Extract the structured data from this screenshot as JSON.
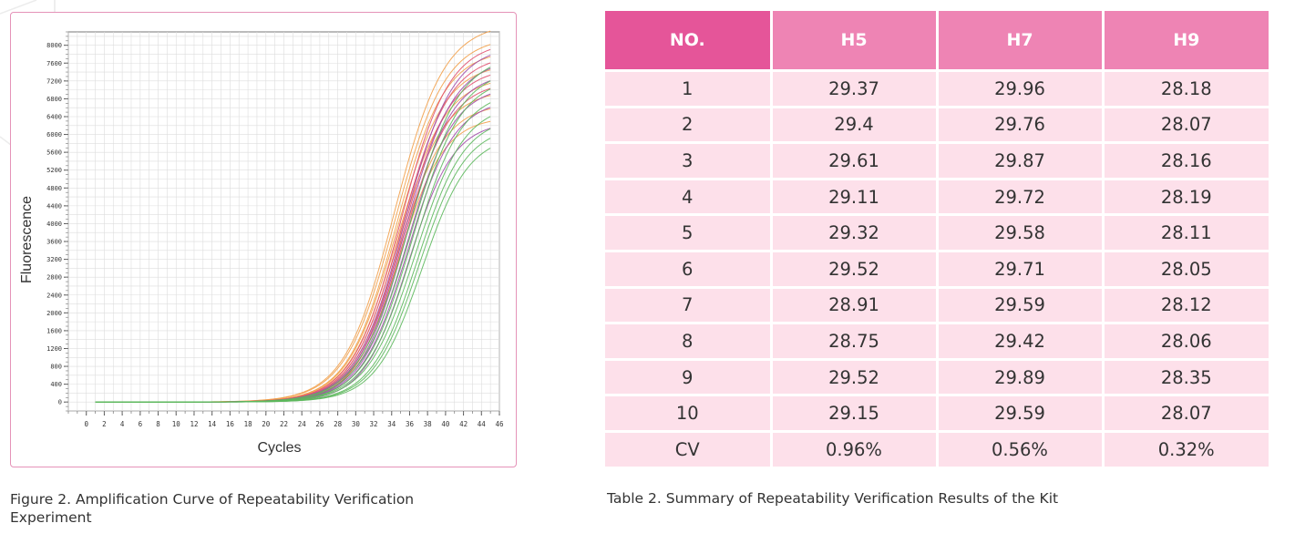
{
  "chart_data": {
    "type": "line",
    "title": "",
    "xlabel": "Cycles",
    "ylabel": "Fluorescence",
    "xlim": [
      -2,
      46
    ],
    "ylim": [
      -200,
      8300
    ],
    "x_ticks": [
      0,
      2,
      4,
      6,
      8,
      10,
      12,
      14,
      16,
      18,
      20,
      22,
      24,
      26,
      28,
      30,
      32,
      34,
      36,
      38,
      40,
      42,
      44,
      46
    ],
    "y_ticks": [
      0,
      400,
      800,
      1200,
      1600,
      2000,
      2400,
      2800,
      3200,
      3600,
      4000,
      4400,
      4800,
      5200,
      5600,
      6000,
      6400,
      6800,
      7200,
      7600,
      8000
    ],
    "x_start": 1,
    "x_end": 45,
    "grid": true,
    "legend": "none",
    "curve_model": "sigmoid: F = max / (1 + exp(-(cycle - mid) / slope))",
    "series": [
      {
        "color": "#f2a04a",
        "max": 8500,
        "mid": 34.3,
        "slope": 2.8
      },
      {
        "color": "#f2a04a",
        "max": 8200,
        "mid": 34.4,
        "slope": 2.8
      },
      {
        "color": "#f2a04a",
        "max": 7900,
        "mid": 34.5,
        "slope": 2.7
      },
      {
        "color": "#f2a04a",
        "max": 7600,
        "mid": 34.5,
        "slope": 2.7
      },
      {
        "color": "#f2a04a",
        "max": 7300,
        "mid": 34.6,
        "slope": 2.7
      },
      {
        "color": "#f2a04a",
        "max": 7000,
        "mid": 34.6,
        "slope": 2.6
      },
      {
        "color": "#f2a04a",
        "max": 6700,
        "mid": 34.7,
        "slope": 2.6
      },
      {
        "color": "#f2a04a",
        "max": 6400,
        "mid": 34.8,
        "slope": 2.5
      },
      {
        "color": "#e0506e",
        "max": 8100,
        "mid": 35.0,
        "slope": 2.7
      },
      {
        "color": "#e0506e",
        "max": 7800,
        "mid": 35.1,
        "slope": 2.7
      },
      {
        "color": "#e0506e",
        "max": 7500,
        "mid": 35.2,
        "slope": 2.6
      },
      {
        "color": "#e0506e",
        "max": 7200,
        "mid": 35.3,
        "slope": 2.6
      },
      {
        "color": "#a04aa8",
        "max": 8000,
        "mid": 35.4,
        "slope": 2.7
      },
      {
        "color": "#a04aa8",
        "max": 7700,
        "mid": 35.5,
        "slope": 2.7
      },
      {
        "color": "#a04aa8",
        "max": 7400,
        "mid": 35.6,
        "slope": 2.6
      },
      {
        "color": "#a04aa8",
        "max": 7100,
        "mid": 35.7,
        "slope": 2.6
      },
      {
        "color": "#a04aa8",
        "max": 6800,
        "mid": 35.8,
        "slope": 2.6
      },
      {
        "color": "#a04aa8",
        "max": 6300,
        "mid": 35.9,
        "slope": 2.5
      },
      {
        "color": "#5cb85c",
        "max": 7800,
        "mid": 35.9,
        "slope": 2.8
      },
      {
        "color": "#5cb85c",
        "max": 7500,
        "mid": 36.1,
        "slope": 2.8
      },
      {
        "color": "#5cb85c",
        "max": 7300,
        "mid": 36.3,
        "slope": 2.7
      },
      {
        "color": "#5cb85c",
        "max": 7000,
        "mid": 36.5,
        "slope": 2.7
      },
      {
        "color": "#5cb85c",
        "max": 6700,
        "mid": 36.7,
        "slope": 2.7
      },
      {
        "color": "#5cb85c",
        "max": 6400,
        "mid": 36.9,
        "slope": 2.6
      },
      {
        "color": "#5cb85c",
        "max": 6200,
        "mid": 37.1,
        "slope": 2.6
      },
      {
        "color": "#5cb85c",
        "max": 6000,
        "mid": 37.4,
        "slope": 2.6
      }
    ]
  },
  "figure_caption": "Figure 2. Amplification Curve of Repeatability Verification Experiment",
  "table": {
    "headers": [
      "NO.",
      "H5",
      "H7",
      "H9"
    ],
    "rows": [
      [
        "1",
        "29.37",
        "29.96",
        "28.18"
      ],
      [
        "2",
        "29.4",
        "29.76",
        "28.07"
      ],
      [
        "3",
        "29.61",
        "29.87",
        "28.16"
      ],
      [
        "4",
        "29.11",
        "29.72",
        "28.19"
      ],
      [
        "5",
        "29.32",
        "29.58",
        "28.11"
      ],
      [
        "6",
        "29.52",
        "29.71",
        "28.05"
      ],
      [
        "7",
        "28.91",
        "29.59",
        "28.12"
      ],
      [
        "8",
        "28.75",
        "29.42",
        "28.06"
      ],
      [
        "9",
        "29.52",
        "29.89",
        "28.35"
      ],
      [
        "10",
        "29.15",
        "29.59",
        "28.07"
      ],
      [
        "CV",
        "0.96%",
        "0.56%",
        "0.32%"
      ]
    ],
    "caption": "Table 2. Summary of Repeatability Verification Results of the Kit"
  },
  "colors": {
    "panel_border": "#e593b8",
    "header_dark": "#e55599",
    "header_light": "#ee84b4",
    "cell_bg": "#fde0ea"
  }
}
